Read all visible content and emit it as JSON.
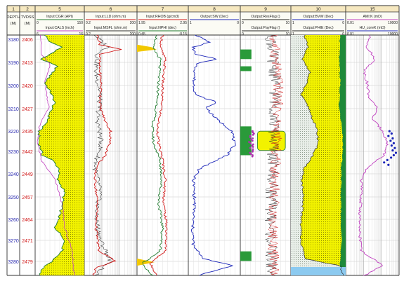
{
  "chart_data": {
    "type": "line",
    "title": "",
    "depth_axis": {
      "reversed": true,
      "grid": true
    },
    "depth_labels": {
      "md": [
        "3180",
        "3190",
        "3200",
        "3210",
        "3220",
        "3230",
        "3240",
        "3250",
        "3260",
        "3270",
        "3280"
      ],
      "tvdss": [
        "2406",
        "2413",
        "2420",
        "2427",
        "2435",
        "2442",
        "2449",
        "2457",
        "2464",
        "2471",
        "2479"
      ]
    },
    "columns": [
      {
        "num": "1",
        "header": "DEPTH\n(M)"
      },
      {
        "num": "2",
        "header": "TVDSS\n(M)"
      },
      {
        "num": "5",
        "curves": [
          {
            "name": "Input:CGR (API)",
            "min": "0",
            "max": "150",
            "color": "#1f7a2e"
          },
          {
            "name": "Input:CALS (inch)",
            "min": "6",
            "max": "16",
            "color": "#c040c0"
          }
        ]
      },
      {
        "num": "6",
        "curves": [
          {
            "name": "Input:LLD (ohm.m)",
            "min": "0.2",
            "max": "200",
            "color": "#d01818"
          },
          {
            "name": "Input:MSFL (ohm.m)",
            "min": "0.2",
            "max": "200",
            "color": "#303030"
          }
        ]
      },
      {
        "num": "7",
        "curves": [
          {
            "name": "Input:RHOB (g/cm3)",
            "min": "1.95",
            "max": "2.95",
            "color": "#d01818"
          },
          {
            "name": "Input:NPHI (dec)",
            "min": "0.45",
            "max": "-0.15",
            "color": "#1f7a2e"
          }
        ]
      },
      {
        "num": "8",
        "curves": [
          {
            "name": "Output:SW (Dec)",
            "min": "1",
            "max": "0",
            "color": "#1a24b8"
          }
        ]
      },
      {
        "num": "9",
        "curves": [
          {
            "name": "Output:ResFlag ()",
            "min": "0",
            "max": "10",
            "color": "#202020"
          },
          {
            "name": "Output:PayFlag ()",
            "min": "0",
            "max": "10",
            "color": "#202020"
          }
        ]
      },
      {
        "num": "10",
        "curves": [
          {
            "name": "Output:BVW (Dec)",
            "min": "1",
            "max": "0",
            "color": "#1a24b8"
          },
          {
            "name": "Output:PHIE (Dec)",
            "min": "1",
            "max": "0",
            "color": "#202020"
          }
        ]
      },
      {
        "num": "15",
        "curves": [
          {
            "name": "AMI:K (mD)",
            "min": "0.01",
            "max": "10000",
            "color": "#c040c0"
          },
          {
            "name": "HU_coreK (mD)",
            "min": "0.01",
            "max": "10000",
            "color": "#1a24b8"
          }
        ]
      }
    ],
    "series_profiles": {
      "cgr": [
        [
          0,
          0.2
        ],
        [
          0.03,
          0.3
        ],
        [
          0.05,
          0.55
        ],
        [
          0.08,
          0.3
        ],
        [
          0.1,
          0.12
        ],
        [
          0.13,
          0.45
        ],
        [
          0.17,
          0.3
        ],
        [
          0.2,
          0.2
        ],
        [
          0.24,
          0.32
        ],
        [
          0.28,
          0.4
        ],
        [
          0.32,
          0.3
        ],
        [
          0.36,
          0.25
        ],
        [
          0.4,
          0.08
        ],
        [
          0.45,
          0.08
        ],
        [
          0.5,
          0.15
        ],
        [
          0.52,
          0.35
        ],
        [
          0.56,
          0.5
        ],
        [
          0.6,
          0.45
        ],
        [
          0.65,
          0.6
        ],
        [
          0.7,
          0.55
        ],
        [
          0.75,
          0.5
        ],
        [
          0.8,
          0.4
        ],
        [
          0.85,
          0.6
        ],
        [
          0.9,
          0.55
        ],
        [
          0.94,
          0.35
        ],
        [
          0.97,
          0.15
        ],
        [
          1,
          0.1
        ]
      ],
      "cals": [
        [
          0,
          0.12
        ],
        [
          0.08,
          0.12
        ],
        [
          0.12,
          0.3
        ],
        [
          0.2,
          0.2
        ],
        [
          0.3,
          0.28
        ],
        [
          0.38,
          0.08
        ],
        [
          0.45,
          0.05
        ],
        [
          0.52,
          0.12
        ],
        [
          0.6,
          0.4
        ],
        [
          0.7,
          0.55
        ],
        [
          0.8,
          0.6
        ],
        [
          0.9,
          0.75
        ],
        [
          1,
          0.8
        ]
      ],
      "lld": [
        [
          0,
          0.25
        ],
        [
          0.04,
          0.3
        ],
        [
          0.06,
          0.7
        ],
        [
          0.08,
          0.3
        ],
        [
          0.12,
          0.28
        ],
        [
          0.2,
          0.32
        ],
        [
          0.3,
          0.3
        ],
        [
          0.36,
          0.4
        ],
        [
          0.4,
          0.5
        ],
        [
          0.45,
          0.48
        ],
        [
          0.5,
          0.4
        ],
        [
          0.55,
          0.22
        ],
        [
          0.6,
          0.2
        ],
        [
          0.7,
          0.25
        ],
        [
          0.8,
          0.22
        ],
        [
          0.9,
          0.28
        ],
        [
          0.94,
          0.6
        ],
        [
          0.97,
          0.2
        ],
        [
          1,
          0.18
        ]
      ],
      "msfl": [
        [
          0,
          0.2
        ],
        [
          0.05,
          0.45
        ],
        [
          0.08,
          0.25
        ],
        [
          0.15,
          0.22
        ],
        [
          0.25,
          0.3
        ],
        [
          0.35,
          0.25
        ],
        [
          0.45,
          0.32
        ],
        [
          0.55,
          0.2
        ],
        [
          0.65,
          0.3
        ],
        [
          0.75,
          0.22
        ],
        [
          0.85,
          0.3
        ],
        [
          0.94,
          0.5
        ],
        [
          1,
          0.2
        ]
      ],
      "rhob": [
        [
          0,
          0.5
        ],
        [
          0.05,
          0.45
        ],
        [
          0.1,
          0.55
        ],
        [
          0.2,
          0.5
        ],
        [
          0.3,
          0.48
        ],
        [
          0.38,
          0.4
        ],
        [
          0.45,
          0.42
        ],
        [
          0.52,
          0.5
        ],
        [
          0.6,
          0.55
        ],
        [
          0.7,
          0.52
        ],
        [
          0.8,
          0.58
        ],
        [
          0.9,
          0.55
        ],
        [
          0.95,
          0.25
        ],
        [
          1,
          0.4
        ]
      ],
      "nphi": [
        [
          0,
          0.4
        ],
        [
          0.05,
          0.3
        ],
        [
          0.1,
          0.45
        ],
        [
          0.2,
          0.42
        ],
        [
          0.3,
          0.38
        ],
        [
          0.38,
          0.3
        ],
        [
          0.45,
          0.32
        ],
        [
          0.52,
          0.45
        ],
        [
          0.6,
          0.48
        ],
        [
          0.7,
          0.42
        ],
        [
          0.8,
          0.5
        ],
        [
          0.9,
          0.45
        ],
        [
          0.95,
          0.1
        ],
        [
          1,
          0.3
        ]
      ],
      "sw": [
        [
          0,
          0.15
        ],
        [
          0.03,
          0.4
        ],
        [
          0.05,
          0.1
        ],
        [
          0.08,
          0.12
        ],
        [
          0.1,
          0.55
        ],
        [
          0.12,
          0.15
        ],
        [
          0.2,
          0.1
        ],
        [
          0.25,
          0.15
        ],
        [
          0.28,
          0.55
        ],
        [
          0.3,
          0.35
        ],
        [
          0.33,
          0.45
        ],
        [
          0.36,
          0.6
        ],
        [
          0.4,
          0.85
        ],
        [
          0.46,
          0.88
        ],
        [
          0.5,
          0.75
        ],
        [
          0.53,
          0.45
        ],
        [
          0.56,
          0.2
        ],
        [
          0.6,
          0.1
        ],
        [
          0.7,
          0.12
        ],
        [
          0.8,
          0.08
        ],
        [
          0.88,
          0.1
        ],
        [
          0.93,
          0.3
        ],
        [
          0.96,
          0.85
        ],
        [
          1,
          0.2
        ]
      ],
      "phie": [
        [
          0,
          0.25
        ],
        [
          0.05,
          0.3
        ],
        [
          0.1,
          0.2
        ],
        [
          0.15,
          0.35
        ],
        [
          0.2,
          0.28
        ],
        [
          0.25,
          0.18
        ],
        [
          0.3,
          0.32
        ],
        [
          0.35,
          0.4
        ],
        [
          0.4,
          0.48
        ],
        [
          0.45,
          0.5
        ],
        [
          0.5,
          0.4
        ],
        [
          0.55,
          0.25
        ],
        [
          0.6,
          0.2
        ],
        [
          0.7,
          0.22
        ],
        [
          0.8,
          0.18
        ],
        [
          0.88,
          0.2
        ],
        [
          0.93,
          0.25
        ],
        [
          0.96,
          0.9
        ],
        [
          1,
          0.95
        ]
      ],
      "bvw": [
        [
          0,
          0.1
        ],
        [
          0.1,
          0.12
        ],
        [
          0.2,
          0.1
        ],
        [
          0.3,
          0.12
        ],
        [
          0.4,
          0.06
        ],
        [
          0.48,
          0.05
        ],
        [
          0.55,
          0.08
        ],
        [
          0.7,
          0.09
        ],
        [
          0.85,
          0.08
        ],
        [
          0.95,
          0.1
        ],
        [
          1,
          0.1
        ]
      ],
      "amik": [
        [
          0,
          0.45
        ],
        [
          0.05,
          0.4
        ],
        [
          0.1,
          0.55
        ],
        [
          0.15,
          0.35
        ],
        [
          0.2,
          0.4
        ],
        [
          0.27,
          0.45
        ],
        [
          0.3,
          0.6
        ],
        [
          0.35,
          0.5
        ],
        [
          0.4,
          0.7
        ],
        [
          0.45,
          0.78
        ],
        [
          0.5,
          0.72
        ],
        [
          0.55,
          0.4
        ],
        [
          0.6,
          0.3
        ],
        [
          0.7,
          0.28
        ],
        [
          0.8,
          0.25
        ],
        [
          0.9,
          0.3
        ],
        [
          0.96,
          0.7
        ],
        [
          1,
          0.35
        ]
      ],
      "corek_points": [
        [
          0.4,
          0.82
        ],
        [
          0.41,
          0.86
        ],
        [
          0.42,
          0.8
        ],
        [
          0.43,
          0.88
        ],
        [
          0.44,
          0.84
        ],
        [
          0.45,
          0.9
        ],
        [
          0.46,
          0.86
        ],
        [
          0.47,
          0.92
        ],
        [
          0.48,
          0.88
        ],
        [
          0.49,
          0.94
        ],
        [
          0.5,
          0.9
        ],
        [
          0.51,
          0.85
        ],
        [
          0.52,
          0.78
        ],
        [
          0.53,
          0.72
        ],
        [
          0.54,
          0.8
        ]
      ]
    },
    "flag_intervals": {
      "resflag": [
        [
          0.06,
          0.1
        ],
        [
          0.13,
          0.15
        ],
        [
          0.38,
          0.5
        ],
        [
          0.9,
          0.94
        ]
      ],
      "payflag": [
        [
          0.4,
          0.48
        ]
      ]
    }
  }
}
